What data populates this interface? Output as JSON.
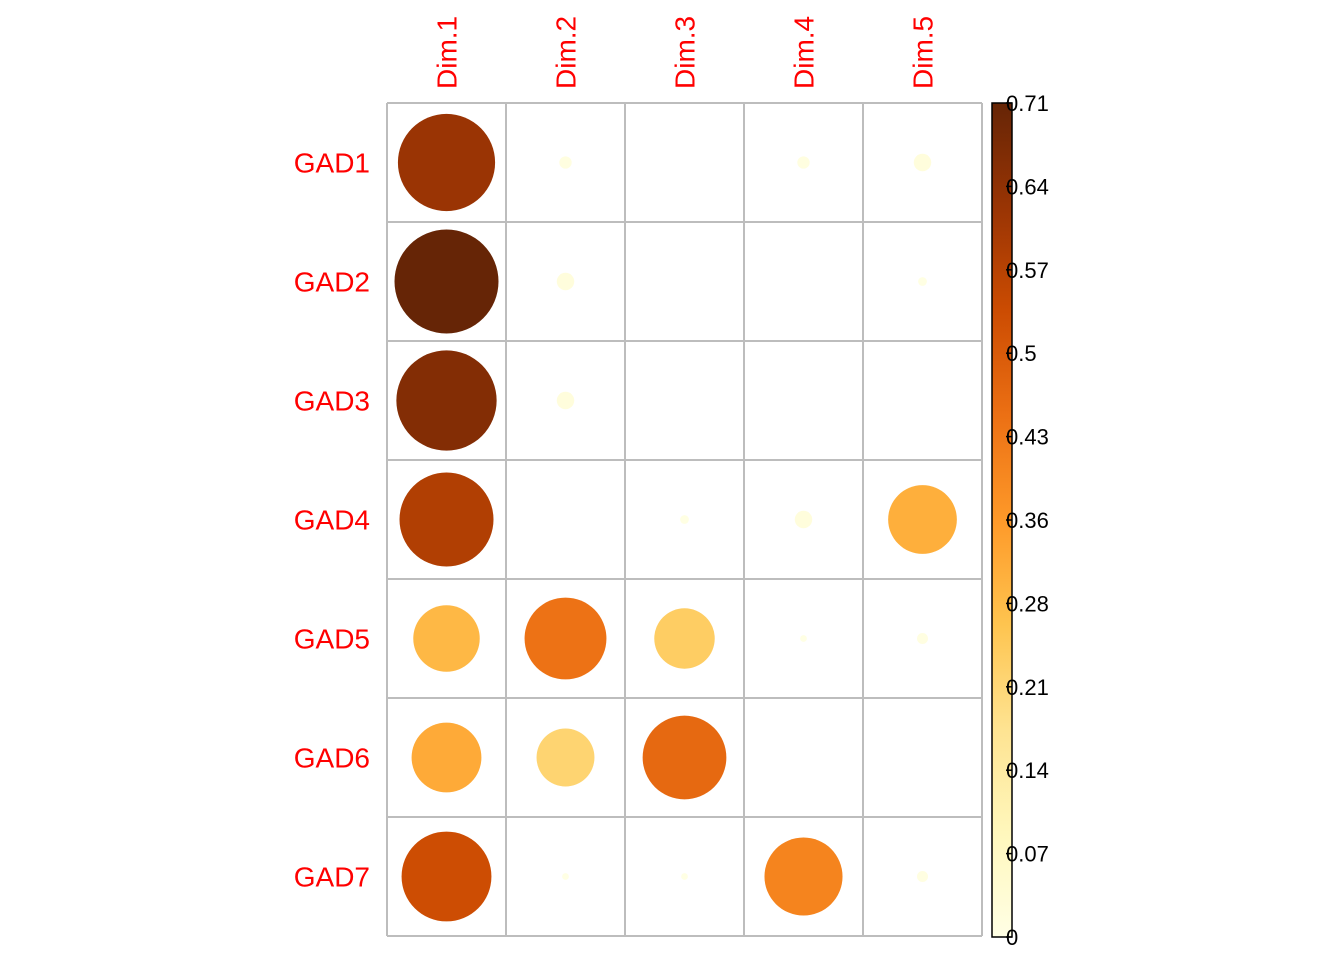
{
  "chart_data": {
    "type": "heatmap",
    "style": "correlation-circle-plot",
    "rows": [
      "GAD1",
      "GAD2",
      "GAD3",
      "GAD4",
      "GAD5",
      "GAD6",
      "GAD7"
    ],
    "columns": [
      "Dim.1",
      "Dim.2",
      "Dim.3",
      "Dim.4",
      "Dim.5"
    ],
    "values": [
      [
        0.62,
        0.01,
        0.0,
        0.01,
        0.02
      ],
      [
        0.71,
        0.02,
        0.0,
        0.0,
        0.005
      ],
      [
        0.66,
        0.02,
        0.0,
        0.0,
        0.0
      ],
      [
        0.58,
        0.0,
        0.005,
        0.02,
        0.31
      ],
      [
        0.29,
        0.44,
        0.24,
        0.003,
        0.008
      ],
      [
        0.32,
        0.22,
        0.46,
        0.0,
        0.0
      ],
      [
        0.53,
        0.003,
        0.003,
        0.4,
        0.008
      ]
    ],
    "colorbar": {
      "ticks": [
        "0.71",
        "0.64",
        "0.57",
        "0.5",
        "0.43",
        "0.36",
        "0.28",
        "0.21",
        "0.14",
        "0.07",
        "0"
      ],
      "range": [
        0,
        0.71
      ],
      "colors": [
        "#FFFFE5",
        "#FFF7BC",
        "#FEE391",
        "#FEC44F",
        "#FE9929",
        "#EC7014",
        "#CC4C02",
        "#993404",
        "#662506"
      ]
    },
    "grid": true,
    "legend_position": "right"
  }
}
